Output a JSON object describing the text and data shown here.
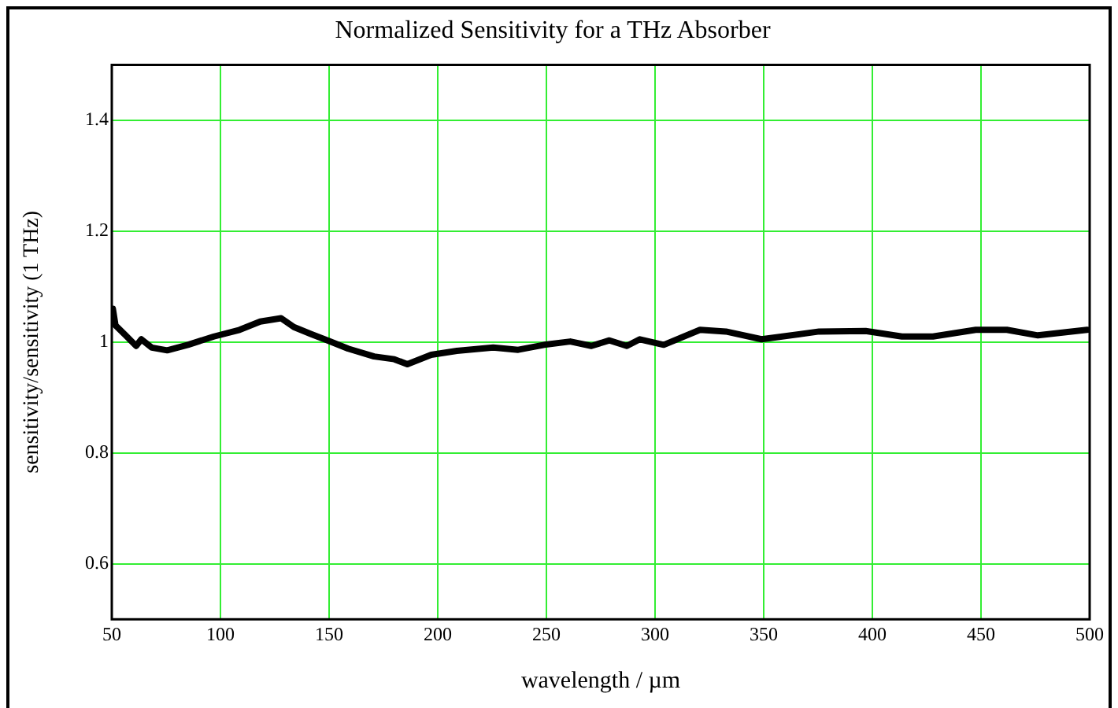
{
  "chart_data": {
    "type": "line",
    "title": "Normalized Sensitivity for a THz Absorber",
    "xlabel": "wavelength / µm",
    "ylabel": "sensitivity/sensitivity (1 THz)",
    "x": [
      50.5,
      51.7,
      56.4,
      61.2,
      63.6,
      68.4,
      75.5,
      85,
      97,
      108.8,
      118.3,
      127.9,
      133.8,
      142,
      149.3,
      158.8,
      170.7,
      180,
      186,
      197,
      208.8,
      225.5,
      237,
      249,
      261,
      270.7,
      279,
      287,
      293,
      304,
      320.7,
      332.6,
      349,
      375.5,
      396.9,
      413.6,
      427.9,
      447.6,
      461.9,
      476.2,
      498.8
    ],
    "series": [
      {
        "color": "#000000",
        "values": [
          1.06,
          1.03,
          1.012,
          0.993,
          1.005,
          0.99,
          0.985,
          0.995,
          1.01,
          1.022,
          1.037,
          1.043,
          1.027,
          1.014,
          1.003,
          0.988,
          0.974,
          0.969,
          0.96,
          0.977,
          0.984,
          0.99,
          0.986,
          0.995,
          1.001,
          0.993,
          1.003,
          0.993,
          1.005,
          0.995,
          1.022,
          1.019,
          1.005,
          1.019,
          1.02,
          1.01,
          1.01,
          1.022,
          1.022,
          1.012,
          1.022
        ]
      }
    ],
    "xlim": [
      50,
      500
    ],
    "xticks": [
      50,
      100,
      150,
      200,
      250,
      300,
      350,
      400,
      450,
      500
    ],
    "ylim": [
      0.5,
      1.5
    ],
    "yticks": [
      0.6,
      0.8,
      1,
      1.2,
      1.4
    ],
    "grid": true,
    "marker": "none",
    "line_style": "solid"
  }
}
